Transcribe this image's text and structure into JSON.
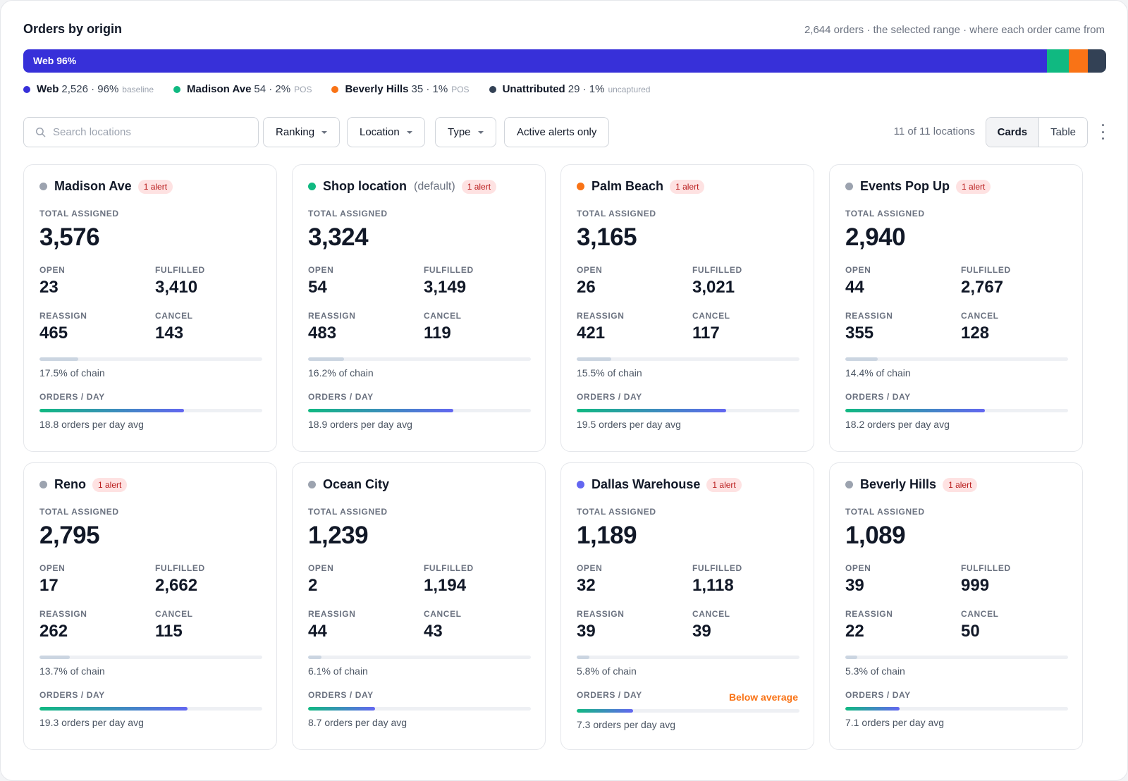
{
  "header": {
    "title": "Orders by origin",
    "subtitle": "2,644 orders · the selected range · where each order came from"
  },
  "origin_bar": {
    "segments": [
      {
        "name": "Web",
        "label": "Web 96%",
        "share": 0.955,
        "color": "#3730d9"
      },
      {
        "name": "Madison Ave",
        "label": "",
        "share": 0.02,
        "color": "#10b981"
      },
      {
        "name": "Beverly Hills",
        "label": "",
        "share": 0.018,
        "color": "#f97316"
      },
      {
        "name": "Unattributed",
        "label": "",
        "share": 0.017,
        "color": "#334155"
      }
    ]
  },
  "legend": [
    {
      "name": "Web",
      "value": "2,526 · 96%",
      "tag": "baseline",
      "color": "#3730d9"
    },
    {
      "name": "Madison Ave",
      "value": "54 · 2%",
      "tag": "POS",
      "color": "#10b981"
    },
    {
      "name": "Beverly Hills",
      "value": "35 · 1%",
      "tag": "POS",
      "color": "#f97316"
    },
    {
      "name": "Unattributed",
      "value": "29 · 1%",
      "tag": "uncaptured",
      "color": "#334155"
    }
  ],
  "toolbar": {
    "search_placeholder": "Search locations",
    "search_icon": "search-icon",
    "filters": [
      "Ranking",
      "Location",
      "Type"
    ],
    "alerts_toggle": "Active alerts only",
    "count": "11 of 11 locations",
    "view_cards": "Cards",
    "view_table": "Table",
    "menu_icon": "kebab-icon"
  },
  "labels": {
    "total": "TOTAL ASSIGNED",
    "open": "OPEN",
    "fulfilled": "FULFILLED",
    "reassign": "REASSIGN",
    "cancel": "CANCEL",
    "orders_day": "ORDERS / DAY"
  },
  "locations": [
    {
      "name": "Madison Ave",
      "suffix": "",
      "dot": "#9ca3af",
      "alert": "1 alert",
      "total": "3,576",
      "open": "23",
      "fulfilled": "3,410",
      "reassign": "465",
      "cancel": "143",
      "chain_pct": 17.5,
      "chain": "17.5% of chain",
      "per_day": 18.8,
      "per_day_text": "18.8 orders per day avg",
      "warning": ""
    },
    {
      "name": "Shop location",
      "suffix": "(default)",
      "dot": "#10b981",
      "alert": "1 alert",
      "total": "3,324",
      "open": "54",
      "fulfilled": "3,149",
      "reassign": "483",
      "cancel": "119",
      "chain_pct": 16.2,
      "chain": "16.2% of chain",
      "per_day": 18.9,
      "per_day_text": "18.9 orders per day avg",
      "warning": ""
    },
    {
      "name": "Palm Beach",
      "suffix": "",
      "dot": "#f97316",
      "alert": "1 alert",
      "total": "3,165",
      "open": "26",
      "fulfilled": "3,021",
      "reassign": "421",
      "cancel": "117",
      "chain_pct": 15.5,
      "chain": "15.5% of chain",
      "per_day": 19.5,
      "per_day_text": "19.5 orders per day avg",
      "warning": ""
    },
    {
      "name": "Events Pop Up",
      "suffix": "",
      "dot": "#9ca3af",
      "alert": "1 alert",
      "total": "2,940",
      "open": "44",
      "fulfilled": "2,767",
      "reassign": "355",
      "cancel": "128",
      "chain_pct": 14.4,
      "chain": "14.4% of chain",
      "per_day": 18.2,
      "per_day_text": "18.2 orders per day avg",
      "warning": ""
    },
    {
      "name": "Reno",
      "suffix": "",
      "dot": "#9ca3af",
      "alert": "1 alert",
      "total": "2,795",
      "open": "17",
      "fulfilled": "2,662",
      "reassign": "262",
      "cancel": "115",
      "chain_pct": 13.7,
      "chain": "13.7% of chain",
      "per_day": 19.3,
      "per_day_text": "19.3 orders per day avg",
      "warning": ""
    },
    {
      "name": "Ocean City",
      "suffix": "",
      "dot": "#9ca3af",
      "alert": "",
      "total": "1,239",
      "open": "2",
      "fulfilled": "1,194",
      "reassign": "44",
      "cancel": "43",
      "chain_pct": 6.1,
      "chain": "6.1% of chain",
      "per_day": 8.7,
      "per_day_text": "8.7 orders per day avg",
      "warning": ""
    },
    {
      "name": "Dallas Warehouse",
      "suffix": "",
      "dot": "#6366f1",
      "alert": "1 alert",
      "total": "1,189",
      "open": "32",
      "fulfilled": "1,118",
      "reassign": "39",
      "cancel": "39",
      "chain_pct": 5.8,
      "chain": "5.8% of chain",
      "per_day": 7.3,
      "per_day_text": "7.3 orders per day avg",
      "warning": "Below average"
    },
    {
      "name": "Beverly Hills",
      "suffix": "",
      "dot": "#9ca3af",
      "alert": "1 alert",
      "total": "1,089",
      "open": "39",
      "fulfilled": "999",
      "reassign": "22",
      "cancel": "50",
      "chain_pct": 5.3,
      "chain": "5.3% of chain",
      "per_day": 7.1,
      "per_day_text": "7.1 orders per day avg",
      "warning": ""
    }
  ]
}
